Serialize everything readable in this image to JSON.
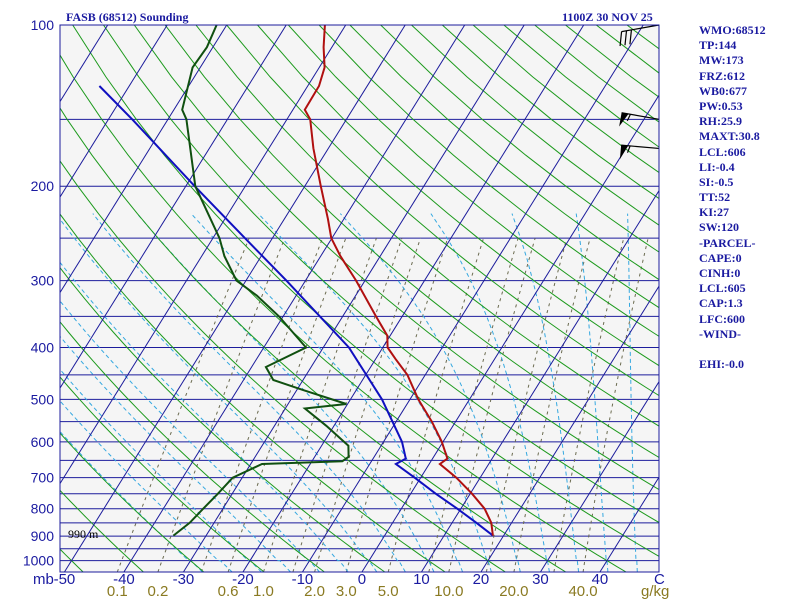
{
  "header": {
    "title": "FASB (68512) Sounding",
    "datetime": "1100Z 30 NOV 25"
  },
  "indices": [
    "WMO:68512",
    "TP:144",
    "MW:173",
    "FRZ:612",
    "WB0:677",
    "PW:0.53",
    "RH:25.9",
    "MAXT:30.8",
    "LCL:606",
    "LI:-0.4",
    "SI:-0.5",
    "TT:52",
    "KI:27",
    "SW:120",
    "-PARCEL-",
    "CAPE:0",
    "CINH:0",
    "LCL:605",
    "CAP:1.3",
    "LFC:600",
    "-WIND-",
    "",
    "EHI:-0.0"
  ],
  "colors": {
    "background": "#f5f5f5",
    "isobar": "#1c1c9c",
    "isotherm": "#1c1c9c",
    "dry_adiabat": "#1d9a1d",
    "moist_adiabat": "#35a8e0",
    "mixing_ratio": "#6b6b50",
    "temperature": "#b01010",
    "dewpoint": "#105010",
    "parcel": "#1010c0",
    "text": "#1a1aa0",
    "mixing_ratio_text": "#8a7a22"
  },
  "chart_data": {
    "type": "skew-t",
    "title": "FASB (68512) Sounding",
    "subtitle": "1100Z 30 NOV 25",
    "xlabel": "C",
    "ylabel": "mb",
    "pressure_range_mb": [
      1000,
      100
    ],
    "pressure_ticks_mb": [
      100,
      200,
      300,
      400,
      500,
      600,
      700,
      800,
      900,
      1000
    ],
    "temperature_ticks_c": [
      -50,
      -40,
      -30,
      -20,
      -10,
      0,
      10,
      20,
      30,
      40
    ],
    "mixing_ratio_labels_gkg": [
      "0.1",
      "0.2",
      "0.6",
      "1.0",
      "2.0",
      "3.0",
      "5.0",
      "10.0",
      "20.0",
      "40.0"
    ],
    "mixing_ratio_unit": "g/kg",
    "surface_height_label": "990 m",
    "temperature_profile": [
      {
        "p": 898,
        "t": 18.2
      },
      {
        "p": 850,
        "t": 16.6
      },
      {
        "p": 800,
        "t": 14.0
      },
      {
        "p": 750,
        "t": 10.3
      },
      {
        "p": 700,
        "t": 6.0
      },
      {
        "p": 660,
        "t": 1.8
      },
      {
        "p": 645,
        "t": 2.5
      },
      {
        "p": 600,
        "t": -0.2
      },
      {
        "p": 550,
        "t": -4.0
      },
      {
        "p": 500,
        "t": -8.6
      },
      {
        "p": 450,
        "t": -13.0
      },
      {
        "p": 420,
        "t": -16.7
      },
      {
        "p": 400,
        "t": -19.2
      },
      {
        "p": 380,
        "t": -20.5
      },
      {
        "p": 350,
        "t": -24.4
      },
      {
        "p": 300,
        "t": -31.5
      },
      {
        "p": 270,
        "t": -36.7
      },
      {
        "p": 250,
        "t": -40.1
      },
      {
        "p": 230,
        "t": -42.7
      },
      {
        "p": 200,
        "t": -47.3
      },
      {
        "p": 170,
        "t": -52.5
      },
      {
        "p": 150,
        "t": -56.1
      },
      {
        "p": 144,
        "t": -58.0
      },
      {
        "p": 130,
        "t": -58.1
      },
      {
        "p": 120,
        "t": -59.1
      },
      {
        "p": 110,
        "t": -61.4
      },
      {
        "p": 100,
        "t": -63.5
      }
    ],
    "dewpoint_profile": [
      {
        "p": 898,
        "t": -35.5
      },
      {
        "p": 850,
        "t": -34.1
      },
      {
        "p": 800,
        "t": -33.3
      },
      {
        "p": 750,
        "t": -32.4
      },
      {
        "p": 700,
        "t": -31.6
      },
      {
        "p": 660,
        "t": -28.1
      },
      {
        "p": 652,
        "t": -14.9
      },
      {
        "p": 640,
        "t": -14.3
      },
      {
        "p": 610,
        "t": -15.5
      },
      {
        "p": 560,
        "t": -21.3
      },
      {
        "p": 520,
        "t": -26.7
      },
      {
        "p": 510,
        "t": -20.2
      },
      {
        "p": 480,
        "t": -29.0
      },
      {
        "p": 460,
        "t": -35.0
      },
      {
        "p": 435,
        "t": -37.6
      },
      {
        "p": 400,
        "t": -32.9
      },
      {
        "p": 350,
        "t": -40.7
      },
      {
        "p": 320,
        "t": -46.6
      },
      {
        "p": 300,
        "t": -51.6
      },
      {
        "p": 270,
        "t": -56.2
      },
      {
        "p": 250,
        "t": -58.9
      },
      {
        "p": 200,
        "t": -68.4
      },
      {
        "p": 150,
        "t": -76.9
      },
      {
        "p": 144,
        "t": -78.6
      },
      {
        "p": 120,
        "t": -81.3
      },
      {
        "p": 110,
        "t": -81.0
      },
      {
        "p": 100,
        "t": -81.7
      }
    ],
    "parcel_profile": [
      {
        "p": 898,
        "t": 18.2
      },
      {
        "p": 850,
        "t": 14.1
      },
      {
        "p": 800,
        "t": 9.4
      },
      {
        "p": 750,
        "t": 4.2
      },
      {
        "p": 700,
        "t": -1.0
      },
      {
        "p": 660,
        "t": -5.6
      },
      {
        "p": 645,
        "t": -4.5
      },
      {
        "p": 600,
        "t": -6.9
      },
      {
        "p": 500,
        "t": -14.7
      },
      {
        "p": 400,
        "t": -25.7
      },
      {
        "p": 300,
        "t": -43.2
      },
      {
        "p": 250,
        "t": -54.6
      },
      {
        "p": 200,
        "t": -68.5
      },
      {
        "p": 150,
        "t": -86.0
      },
      {
        "p": 130,
        "t": -95.0
      }
    ],
    "wind_barbs": [
      {
        "p": 100,
        "direction_deg": 280,
        "speed_kt": 30
      },
      {
        "p": 150,
        "direction_deg": 260,
        "speed_kt": 55
      },
      {
        "p": 170,
        "direction_deg": 265,
        "speed_kt": 55
      }
    ]
  }
}
